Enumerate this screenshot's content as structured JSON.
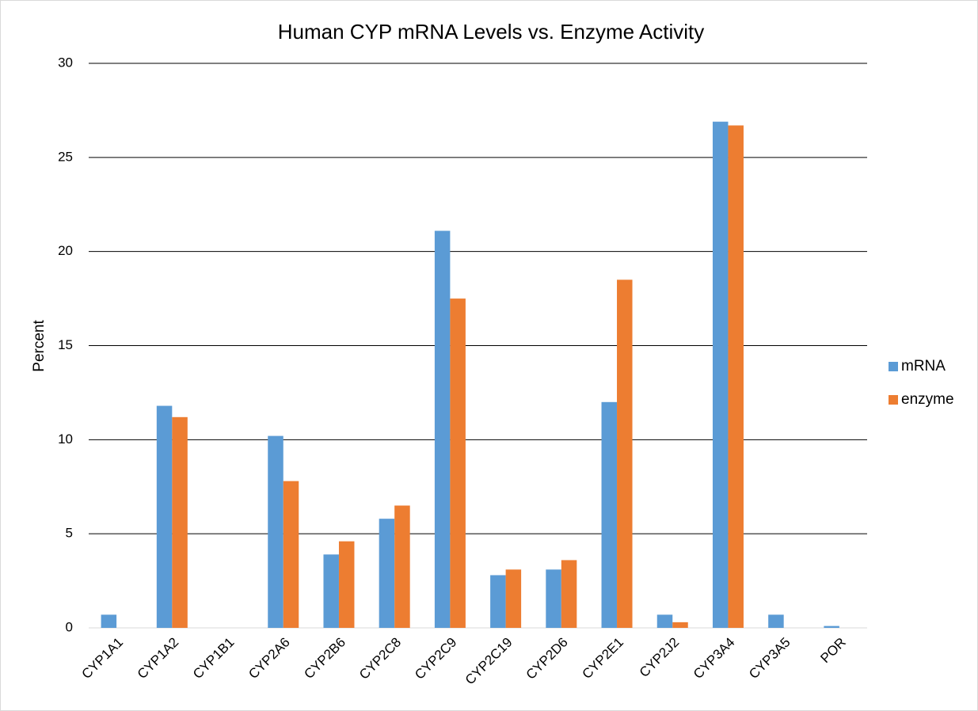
{
  "chart_data": {
    "type": "bar",
    "title": "Human CYP mRNA Levels vs. Enzyme Activity",
    "y_label": "Percent",
    "categories": [
      "CYP1A1",
      "CYP1A2",
      "CYP1B1",
      "CYP2A6",
      "CYP2B6",
      "CYP2C8",
      "CYP2C9",
      "CYP2C19",
      "CYP2D6",
      "CYP2E1",
      "CYP2J2",
      "CYP3A4",
      "CYP3A5",
      "POR"
    ],
    "series": [
      {
        "name": "mRNA",
        "color": "#5b9bd5",
        "values": [
          0.7,
          11.8,
          0,
          10.2,
          3.9,
          5.8,
          21.1,
          2.8,
          3.1,
          12.0,
          0.7,
          26.9,
          0.7,
          0.1
        ]
      },
      {
        "name": "enzyme",
        "color": "#ed7d31",
        "values": [
          0,
          11.2,
          0,
          7.8,
          4.6,
          6.5,
          17.5,
          3.1,
          3.6,
          18.5,
          0.3,
          26.7,
          0,
          0
        ]
      }
    ],
    "ylim": [
      0,
      30
    ],
    "yticks": [
      0,
      5,
      10,
      15,
      20,
      25,
      30
    ],
    "grid": true,
    "legend": "right"
  }
}
